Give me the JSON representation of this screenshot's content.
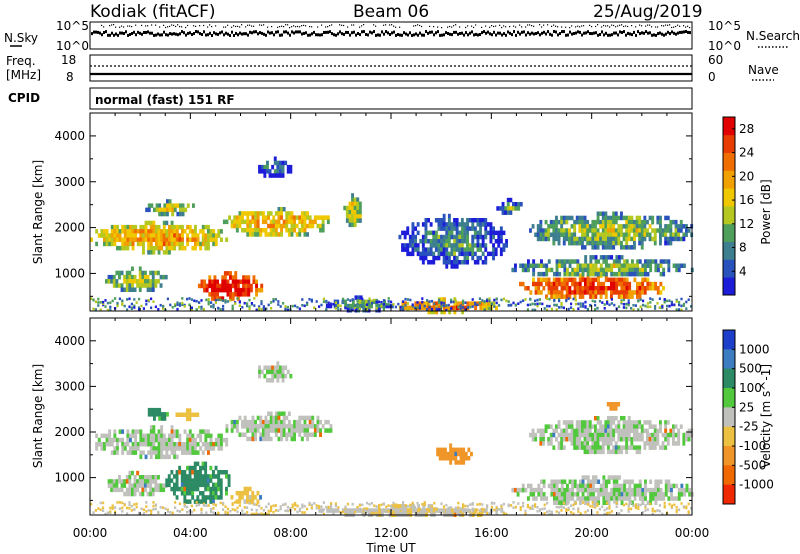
{
  "header": {
    "station": "Kodiak (fitACF)",
    "beam": "Beam 06",
    "date": "25/Aug/2019"
  },
  "strip_labels": {
    "nsky": "N.Sky",
    "nsky_ticks": [
      "10^5",
      "10^0"
    ],
    "nsearch": "N.Search",
    "nsearch_ticks": [
      "10^5",
      "10^0"
    ],
    "freq_label": [
      "Freq.",
      "[MHz]"
    ],
    "freq_ticks": [
      "18",
      "8"
    ],
    "nave": "Nave",
    "nave_ticks": [
      "60",
      "0"
    ],
    "cpid": "CPID",
    "mode_text": "normal (fast) 151 RF"
  },
  "colors": {
    "power_scale": [
      "#1c1cd9",
      "#2a52bd",
      "#3d7f8f",
      "#4e9e5c",
      "#b4c820",
      "#f0c800",
      "#f0a000",
      "#f06e00",
      "#e83c00",
      "#e00000"
    ],
    "velocity_scale": [
      "#1c3ec8",
      "#3c7cc0",
      "#2c8a64",
      "#52c83c",
      "#c0c0bc",
      "#ecc040",
      "#f09628",
      "#f06800",
      "#f02800"
    ],
    "nodata": "#ffffff"
  },
  "chart_data": [
    {
      "type": "heatmap",
      "panel": "power",
      "xlabel": "Time UT",
      "ylabel": "Slant Range [km]",
      "x_range_hours": [
        0,
        24
      ],
      "xticks": [
        "00:00",
        "04:00",
        "08:00",
        "12:00",
        "16:00",
        "20:00",
        "00:00"
      ],
      "ylim": [
        180,
        4500
      ],
      "yticks": [
        1000,
        2000,
        3000,
        4000
      ],
      "colorbar": {
        "label": "Power [dB]",
        "ticks": [
          "4",
          "8",
          "12",
          "16",
          "20",
          "24",
          "28"
        ],
        "range": [
          0,
          30
        ]
      },
      "regions": [
        {
          "t0": 0.0,
          "t1": 5.4,
          "r0": 1500,
          "r1": 2150,
          "value": 17
        },
        {
          "t0": 2.2,
          "t1": 4.2,
          "r0": 2320,
          "r1": 2620,
          "value": 13
        },
        {
          "t0": 5.3,
          "t1": 9.6,
          "r0": 1850,
          "r1": 2450,
          "value": 17
        },
        {
          "t0": 10.1,
          "t1": 10.8,
          "r0": 2050,
          "r1": 2750,
          "value": 14
        },
        {
          "t0": 0.6,
          "t1": 3.0,
          "r0": 650,
          "r1": 1150,
          "value": 12
        },
        {
          "t0": 4.3,
          "t1": 6.8,
          "r0": 450,
          "r1": 1050,
          "value": 27
        },
        {
          "t0": 6.6,
          "t1": 8.0,
          "r0": 3150,
          "r1": 3550,
          "value": 4
        },
        {
          "t0": 9.3,
          "t1": 12.2,
          "r0": 220,
          "r1": 520,
          "value": 7
        },
        {
          "t0": 12.0,
          "t1": 16.2,
          "r0": 200,
          "r1": 480,
          "value": 20
        },
        {
          "t0": 17.0,
          "t1": 22.9,
          "r0": 480,
          "r1": 1000,
          "value": 24
        },
        {
          "t0": 16.8,
          "t1": 24.0,
          "r0": 950,
          "r1": 1400,
          "value": 10
        },
        {
          "t0": 17.5,
          "t1": 24.0,
          "r0": 1600,
          "r1": 2350,
          "value": 11
        },
        {
          "t0": 16.2,
          "t1": 17.2,
          "r0": 2300,
          "r1": 2650,
          "value": 8
        },
        {
          "t0": 12.3,
          "t1": 16.6,
          "r0": 1200,
          "r1": 2300,
          "value": 6
        }
      ]
    },
    {
      "type": "heatmap",
      "panel": "velocity",
      "xlabel": "Time UT",
      "ylabel": "Slant Range [km]",
      "x_range_hours": [
        0,
        24
      ],
      "xticks": [
        "00:00",
        "04:00",
        "08:00",
        "12:00",
        "16:00",
        "20:00",
        "00:00"
      ],
      "ylim": [
        180,
        4500
      ],
      "yticks": [
        1000,
        2000,
        3000,
        4000
      ],
      "colorbar": {
        "label": "Velocity [m s^-1]",
        "ticks": [
          "1000",
          "500",
          "100",
          "25",
          "-25",
          "-100",
          "-500",
          "-1000"
        ]
      },
      "regions": [
        {
          "t0": 0.0,
          "t1": 5.4,
          "r0": 1500,
          "r1": 2150,
          "value": 0
        },
        {
          "t0": 2.2,
          "t1": 3.2,
          "r0": 2320,
          "r1": 2620,
          "value": 60
        },
        {
          "t0": 3.2,
          "t1": 4.4,
          "r0": 2320,
          "r1": 2520,
          "value": -60
        },
        {
          "t0": 5.3,
          "t1": 9.6,
          "r0": 1850,
          "r1": 2450,
          "value": 0
        },
        {
          "t0": 0.6,
          "t1": 3.0,
          "r0": 650,
          "r1": 1150,
          "value": 0
        },
        {
          "t0": 3.0,
          "t1": 5.6,
          "r0": 480,
          "r1": 1350,
          "value": 60
        },
        {
          "t0": 5.6,
          "t1": 6.8,
          "r0": 450,
          "r1": 800,
          "value": -60
        },
        {
          "t0": 6.6,
          "t1": 8.0,
          "r0": 3150,
          "r1": 3550,
          "value": 0
        },
        {
          "t0": 9.0,
          "t1": 16.5,
          "r0": 200,
          "r1": 420,
          "value": -15
        },
        {
          "t0": 13.7,
          "t1": 15.2,
          "r0": 1350,
          "r1": 1750,
          "value": -300
        },
        {
          "t0": 16.8,
          "t1": 24.0,
          "r0": 450,
          "r1": 1050,
          "value": 0
        },
        {
          "t0": 17.5,
          "t1": 24.0,
          "r0": 1600,
          "r1": 2350,
          "value": 0
        },
        {
          "t0": 20.5,
          "t1": 21.1,
          "r0": 2550,
          "r1": 2750,
          "value": -300
        }
      ]
    }
  ]
}
